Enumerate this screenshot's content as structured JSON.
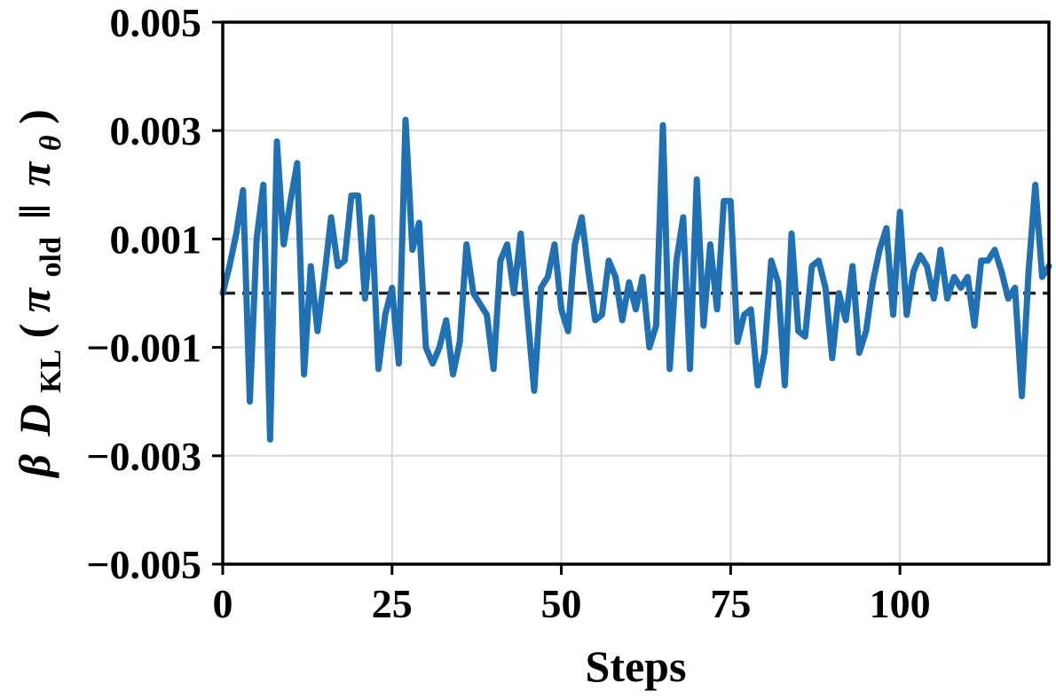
{
  "chart_data": {
    "type": "line",
    "title": "",
    "xlabel": "Steps",
    "ylabel": {
      "beta": "β",
      "D": "D",
      "sub_kl": "KL",
      "open": "(",
      "pi1": "π",
      "sub_old": "old",
      "bars": "‖",
      "pi2": "π",
      "sub_theta": "θ",
      "close": ")"
    },
    "xlim": [
      0,
      122
    ],
    "ylim": [
      -0.005,
      0.005
    ],
    "xticks": [
      0,
      25,
      50,
      75,
      100
    ],
    "xtick_labels": [
      "0",
      "25",
      "50",
      "75",
      "100"
    ],
    "yticks": [
      -0.005,
      -0.003,
      -0.001,
      0.001,
      0.003,
      0.005
    ],
    "ytick_labels": [
      "−0.005",
      "−0.003",
      "−0.001",
      "0.001",
      "0.003",
      "0.005"
    ],
    "grid": true,
    "reference_line": {
      "y": 0,
      "style": "dashed",
      "color": "#222222"
    },
    "series": [
      {
        "color": "#2070b4",
        "x": [
          0,
          1,
          2,
          3,
          4,
          5,
          6,
          7,
          8,
          9,
          10,
          11,
          12,
          13,
          14,
          15,
          16,
          17,
          18,
          19,
          20,
          21,
          22,
          23,
          24,
          25,
          26,
          27,
          28,
          29,
          30,
          31,
          32,
          33,
          34,
          35,
          36,
          37,
          38,
          39,
          40,
          41,
          42,
          43,
          44,
          45,
          46,
          47,
          48,
          49,
          50,
          51,
          52,
          53,
          54,
          55,
          56,
          57,
          58,
          59,
          60,
          61,
          62,
          63,
          64,
          65,
          66,
          67,
          68,
          69,
          70,
          71,
          72,
          73,
          74,
          75,
          76,
          77,
          78,
          79,
          80,
          81,
          82,
          83,
          84,
          85,
          86,
          87,
          88,
          89,
          90,
          91,
          92,
          93,
          94,
          95,
          96,
          97,
          98,
          99,
          100,
          101,
          102,
          103,
          104,
          105,
          106,
          107,
          108,
          109,
          110,
          111,
          112,
          113,
          114,
          115,
          116,
          117,
          118,
          119,
          120,
          121,
          122
        ],
        "values": [
          0.0,
          0.0005,
          0.0011,
          0.0019,
          -0.002,
          0.001,
          0.002,
          -0.0027,
          0.0028,
          0.0009,
          0.0017,
          0.0024,
          -0.0015,
          0.0005,
          -0.0007,
          0.0003,
          0.0014,
          0.0005,
          0.0006,
          0.0018,
          0.0018,
          -0.0001,
          0.0014,
          -0.0014,
          -0.0004,
          0.0001,
          -0.0013,
          0.0032,
          0.0008,
          0.0013,
          -0.001,
          -0.0013,
          -0.001,
          -0.0005,
          -0.0015,
          -0.0009,
          0.0009,
          0.0,
          -0.0002,
          -0.0004,
          -0.0014,
          0.0006,
          0.0009,
          0.0,
          0.0011,
          -0.0004,
          -0.0018,
          0.0001,
          0.0003,
          0.0009,
          -0.0003,
          -0.0007,
          0.0009,
          0.0014,
          0.0004,
          -0.0005,
          -0.0004,
          0.0006,
          0.0003,
          -0.0005,
          0.0002,
          -0.0003,
          0.0003,
          -0.001,
          -0.0006,
          0.0031,
          -0.0014,
          0.0006,
          0.0014,
          -0.0014,
          0.0021,
          -0.0006,
          0.0009,
          -0.0003,
          0.0017,
          0.0017,
          -0.0009,
          -0.0004,
          -0.0003,
          -0.0017,
          -0.0011,
          0.0006,
          0.0002,
          -0.0017,
          0.0011,
          -0.0007,
          -0.0008,
          0.0005,
          0.0006,
          0.0001,
          -0.0012,
          0.0,
          -0.0005,
          0.0005,
          -0.0011,
          -0.0007,
          0.0002,
          0.0008,
          0.0012,
          -0.0004,
          0.0015,
          -0.0004,
          0.0004,
          0.0007,
          0.0005,
          -0.0001,
          0.0008,
          -0.0001,
          0.0003,
          0.0001,
          0.0003,
          -0.0006,
          0.0006,
          0.0006,
          0.0008,
          0.0004,
          -0.0001,
          0.0001,
          -0.0019,
          0.0004,
          0.002,
          0.0003,
          0.0005
        ]
      }
    ]
  }
}
